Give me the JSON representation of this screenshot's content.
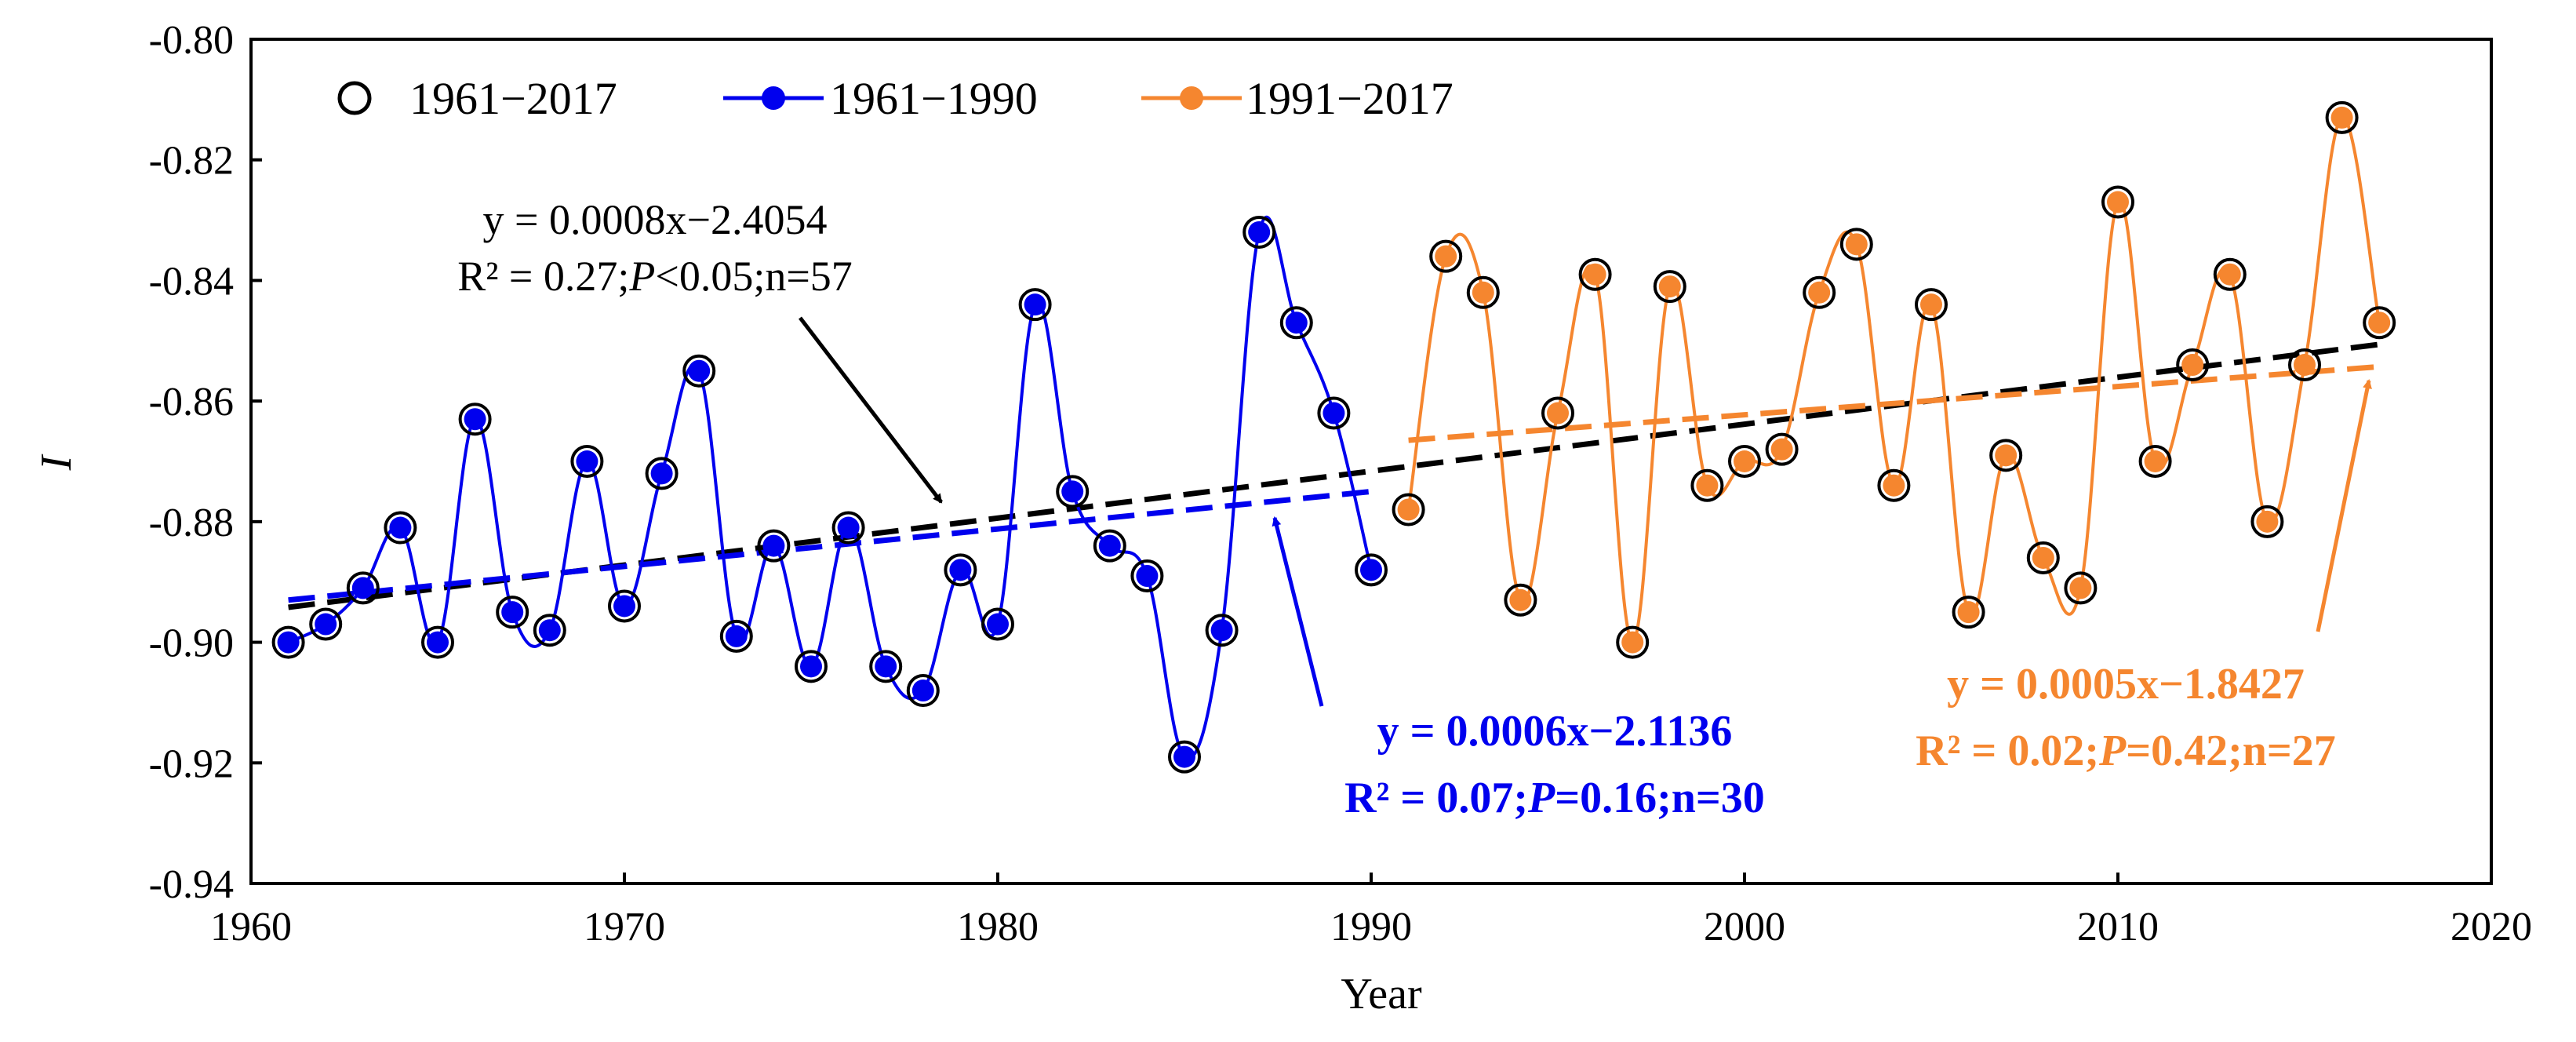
{
  "chart_data": {
    "type": "line",
    "title": "",
    "xlabel": "Year",
    "ylabel": "I",
    "xlim": [
      1960,
      2020
    ],
    "ylim": [
      -0.94,
      -0.8
    ],
    "x_ticks": [
      1960,
      1970,
      1980,
      1990,
      2000,
      2010,
      2020
    ],
    "y_ticks": [
      -0.8,
      -0.82,
      -0.84,
      -0.86,
      -0.88,
      -0.9,
      -0.92,
      -0.94
    ],
    "x_tick_labels": [
      "1960",
      "1970",
      "1980",
      "1990",
      "2000",
      "2010",
      "2020"
    ],
    "y_tick_labels": [
      "-0.80",
      "-0.82",
      "-0.84",
      "-0.86",
      "-0.88",
      "-0.90",
      "-0.92",
      "-0.94"
    ],
    "grid": false,
    "legend_position": "top-left",
    "colors": {
      "all": "#000000",
      "early": "#0000ee",
      "late": "#f5862f"
    },
    "series": [
      {
        "name": "1961−2017",
        "style": "open-circle",
        "x": [
          1961,
          1962,
          1963,
          1964,
          1965,
          1966,
          1967,
          1968,
          1969,
          1970,
          1971,
          1972,
          1973,
          1974,
          1975,
          1976,
          1977,
          1978,
          1979,
          1980,
          1981,
          1982,
          1983,
          1984,
          1985,
          1986,
          1987,
          1988,
          1989,
          1990,
          1991,
          1992,
          1993,
          1994,
          1995,
          1996,
          1997,
          1998,
          1999,
          2000,
          2001,
          2002,
          2003,
          2004,
          2005,
          2006,
          2007,
          2008,
          2009,
          2010,
          2011,
          2012,
          2013,
          2014,
          2015,
          2016,
          2017
        ],
        "values": [
          -0.9,
          -0.897,
          -0.891,
          -0.881,
          -0.9,
          -0.863,
          -0.895,
          -0.898,
          -0.87,
          -0.894,
          -0.872,
          -0.855,
          -0.899,
          -0.884,
          -0.904,
          -0.881,
          -0.904,
          -0.908,
          -0.888,
          -0.897,
          -0.844,
          -0.875,
          -0.884,
          -0.889,
          -0.919,
          -0.898,
          -0.832,
          -0.847,
          -0.862,
          -0.888,
          -0.878,
          -0.836,
          -0.842,
          -0.893,
          -0.862,
          -0.839,
          -0.9,
          -0.841,
          -0.874,
          -0.87,
          -0.868,
          -0.842,
          -0.834,
          -0.874,
          -0.844,
          -0.895,
          -0.869,
          -0.886,
          -0.891,
          -0.827,
          -0.87,
          -0.854,
          -0.839,
          -0.88,
          -0.854,
          -0.813,
          -0.847
        ]
      },
      {
        "name": "1961−1990",
        "style": "line-with-dot",
        "x": [
          1961,
          1962,
          1963,
          1964,
          1965,
          1966,
          1967,
          1968,
          1969,
          1970,
          1971,
          1972,
          1973,
          1974,
          1975,
          1976,
          1977,
          1978,
          1979,
          1980,
          1981,
          1982,
          1983,
          1984,
          1985,
          1986,
          1987,
          1988,
          1989,
          1990
        ],
        "values": [
          -0.9,
          -0.897,
          -0.891,
          -0.881,
          -0.9,
          -0.863,
          -0.895,
          -0.898,
          -0.87,
          -0.894,
          -0.872,
          -0.855,
          -0.899,
          -0.884,
          -0.904,
          -0.881,
          -0.904,
          -0.908,
          -0.888,
          -0.897,
          -0.844,
          -0.875,
          -0.884,
          -0.889,
          -0.919,
          -0.898,
          -0.832,
          -0.847,
          -0.862,
          -0.888
        ]
      },
      {
        "name": "1991−2017",
        "style": "line-with-dot",
        "x": [
          1991,
          1992,
          1993,
          1994,
          1995,
          1996,
          1997,
          1998,
          1999,
          2000,
          2001,
          2002,
          2003,
          2004,
          2005,
          2006,
          2007,
          2008,
          2009,
          2010,
          2011,
          2012,
          2013,
          2014,
          2015,
          2016,
          2017
        ],
        "values": [
          -0.878,
          -0.836,
          -0.842,
          -0.893,
          -0.862,
          -0.839,
          -0.9,
          -0.841,
          -0.874,
          -0.87,
          -0.868,
          -0.842,
          -0.834,
          -0.874,
          -0.844,
          -0.895,
          -0.869,
          -0.886,
          -0.891,
          -0.827,
          -0.87,
          -0.854,
          -0.839,
          -0.88,
          -0.854,
          -0.813,
          -0.847
        ]
      }
    ],
    "trendlines": [
      {
        "name": "trend-1961-2017",
        "x": [
          1961,
          2017
        ],
        "values": [
          -0.8942,
          -0.8506
        ],
        "color": "#000000"
      },
      {
        "name": "trend-1961-1990",
        "x": [
          1961,
          1990
        ],
        "values": [
          -0.893,
          -0.875
        ],
        "color": "#0000ee"
      },
      {
        "name": "trend-1991-2017",
        "x": [
          1991,
          2017
        ],
        "values": [
          -0.8665,
          -0.8543
        ],
        "color": "#f5862f"
      }
    ],
    "annotations": {
      "all": {
        "equation": "y = 0.0008x−2.4054",
        "stats_prefix": "R² = 0.27;",
        "stats_p": "P",
        "stats_suffix": "<0.05;n=57"
      },
      "early": {
        "equation": "y = 0.0006x−2.1136",
        "stats_prefix": "R² = 0.07;",
        "stats_p": "P",
        "stats_suffix": "=0.16;n=30"
      },
      "late": {
        "equation": "y = 0.0005x−1.8427",
        "stats_prefix": "R² = 0.02;",
        "stats_p": "P",
        "stats_suffix": "=0.42;n=27"
      }
    }
  }
}
